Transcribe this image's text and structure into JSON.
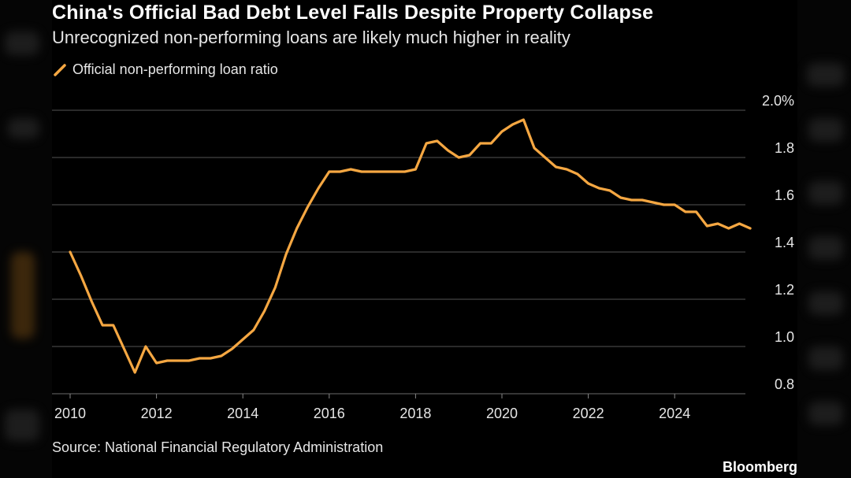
{
  "header": {
    "title": "China's Official Bad Debt Level Falls Despite Property Collapse",
    "subtitle": "Unrecognized non-performing loans are likely much higher in reality"
  },
  "footer": {
    "source": "Source: National Financial Regulatory Administration",
    "brand": "Bloomberg"
  },
  "colors": {
    "background": "#000000",
    "line": "#f5a742",
    "grid": "#555555",
    "text": "#e6e6e6"
  },
  "chart_data": {
    "type": "line",
    "title": "China's Official Bad Debt Level Falls Despite Property Collapse",
    "subtitle": "Unrecognized non-performing loans are likely much higher in reality",
    "xlabel": "",
    "ylabel": "",
    "legend_position": "top-left",
    "grid": true,
    "y_axis_side": "right",
    "ylim": [
      0.8,
      2.0
    ],
    "xlim": [
      2010,
      2026
    ],
    "y_ticks": [
      0.8,
      1.0,
      1.2,
      1.4,
      1.6,
      1.8,
      2.0
    ],
    "y_tick_labels": [
      "0.8",
      "1.0",
      "1.2",
      "1.4",
      "1.6",
      "1.8",
      "2.0%"
    ],
    "x_ticks": [
      2010,
      2012,
      2014,
      2016,
      2018,
      2020,
      2022,
      2024
    ],
    "x_tick_labels": [
      "2010",
      "2012",
      "2014",
      "2016",
      "2018",
      "2020",
      "2022",
      "2024"
    ],
    "series": [
      {
        "name": "Official non-performing loan ratio",
        "color": "#f5a742",
        "x": [
          2010.0,
          2010.25,
          2010.5,
          2010.75,
          2011.0,
          2011.25,
          2011.5,
          2011.75,
          2012.0,
          2012.25,
          2012.5,
          2012.75,
          2013.0,
          2013.25,
          2013.5,
          2013.75,
          2014.0,
          2014.25,
          2014.5,
          2014.75,
          2015.0,
          2015.25,
          2015.5,
          2015.75,
          2016.0,
          2016.25,
          2016.5,
          2016.75,
          2017.0,
          2017.25,
          2017.5,
          2017.75,
          2018.0,
          2018.25,
          2018.5,
          2018.75,
          2019.0,
          2019.25,
          2019.5,
          2019.75,
          2020.0,
          2020.25,
          2020.5,
          2020.75,
          2021.0,
          2021.25,
          2021.5,
          2021.75,
          2022.0,
          2022.25,
          2022.5,
          2022.75,
          2023.0,
          2023.25,
          2023.5,
          2023.75,
          2024.0,
          2024.25,
          2024.5,
          2024.75,
          2025.0,
          2025.25,
          2025.5,
          2025.75
        ],
        "values": [
          1.4,
          1.3,
          1.19,
          1.09,
          1.09,
          0.99,
          0.89,
          1.0,
          0.93,
          0.94,
          0.94,
          0.94,
          0.95,
          0.95,
          0.96,
          0.99,
          1.03,
          1.07,
          1.15,
          1.25,
          1.39,
          1.5,
          1.59,
          1.67,
          1.74,
          1.74,
          1.75,
          1.74,
          1.74,
          1.74,
          1.74,
          1.74,
          1.75,
          1.86,
          1.87,
          1.83,
          1.8,
          1.81,
          1.86,
          1.86,
          1.91,
          1.94,
          1.96,
          1.84,
          1.8,
          1.76,
          1.75,
          1.73,
          1.69,
          1.67,
          1.66,
          1.63,
          1.62,
          1.62,
          1.61,
          1.6,
          1.6,
          1.57,
          1.57,
          1.51,
          1.52,
          1.5,
          1.52,
          1.5
        ]
      }
    ]
  }
}
